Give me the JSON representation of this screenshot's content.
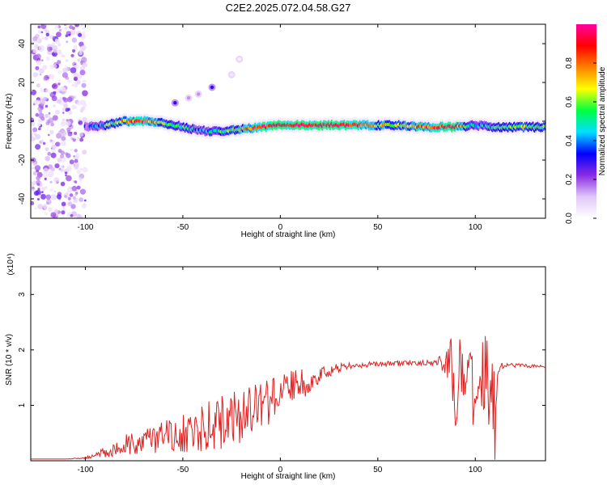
{
  "title": "C2E2.2025.072.04.58.G27",
  "colors": {
    "snr_line": "#e02020",
    "colormap": [
      "#ffffff",
      "#e0c8f8",
      "#8a2be2",
      "#0000ff",
      "#00e0ff",
      "#00ff40",
      "#ffff00",
      "#ff8000",
      "#ff0000",
      "#ff00a0"
    ]
  },
  "chart_data": [
    {
      "type": "heatmap",
      "title": "C2E2.2025.072.04.58.G27",
      "xlabel": "Height of straight line (km)",
      "ylabel": "Frequency (Hz)",
      "xlim": [
        -128,
        136
      ],
      "ylim": [
        -50,
        50
      ],
      "x_ticks": [
        -100,
        -50,
        0,
        50,
        100
      ],
      "y_ticks": [
        -40,
        -20,
        0,
        20,
        40
      ],
      "colorbar": {
        "label": "Normalized spectral amplitude",
        "range": [
          0,
          1
        ],
        "ticks": [
          "0.0",
          "0.2",
          "0.4",
          "0.6",
          "0.8"
        ],
        "tick_values": [
          0.0,
          0.2,
          0.4,
          0.6,
          0.8
        ]
      },
      "ridge": {
        "x": [
          -100,
          -90,
          -80,
          -70,
          -60,
          -50,
          -40,
          -30,
          -20,
          -10,
          0,
          10,
          20,
          30,
          40,
          50,
          60,
          70,
          80,
          90,
          100,
          110,
          120,
          136
        ],
        "freq_hz": [
          -3,
          -2,
          0,
          0,
          -1,
          -3,
          -5,
          -5,
          -4,
          -3,
          -2,
          -2,
          -2,
          -2,
          -2,
          -2,
          -2,
          -3,
          -3,
          -3,
          -2,
          -3,
          -3,
          -3
        ],
        "amplitude": [
          0.25,
          0.5,
          0.75,
          0.9,
          0.6,
          0.5,
          0.4,
          0.5,
          0.7,
          0.9,
          0.95,
          0.9,
          0.95,
          0.95,
          0.85,
          0.7,
          0.6,
          0.8,
          0.85,
          0.9,
          0.4,
          0.5,
          0.6,
          0.6
        ]
      },
      "harmonic_blobs": [
        {
          "x": -54,
          "freq_hz": 9.5,
          "amplitude": 0.3
        },
        {
          "x": -47,
          "freq_hz": 12,
          "amplitude": 0.15
        },
        {
          "x": -42,
          "freq_hz": 14,
          "amplitude": 0.15
        },
        {
          "x": -35,
          "freq_hz": 17.5,
          "amplitude": 0.3
        },
        {
          "x": -25,
          "freq_hz": 24,
          "amplitude": 0.05
        },
        {
          "x": -21,
          "freq_hz": 32,
          "amplitude": 0.03
        }
      ],
      "noise_region_x": [
        -128,
        -100
      ]
    },
    {
      "type": "line",
      "xlabel": "Height of straight line (km)",
      "ylabel": "SNR (10 * v/v)",
      "y_multiplier_label": "(x10⁴)",
      "xlim": [
        -128,
        136
      ],
      "ylim": [
        0,
        3.5
      ],
      "x_ticks": [
        -100,
        -50,
        0,
        50,
        100
      ],
      "y_ticks": [
        1,
        2,
        3
      ],
      "series": [
        {
          "x": [
            -128,
            -110,
            -100,
            -95,
            -90,
            -80,
            -70,
            -60,
            -50,
            -40,
            -30,
            -20,
            -10,
            0,
            10,
            20,
            30,
            40,
            50,
            60,
            70,
            80,
            85,
            88,
            90,
            92,
            95,
            100,
            105,
            108,
            110,
            112,
            115,
            120,
            130,
            136
          ],
          "values": [
            0.03,
            0.03,
            0.05,
            0.1,
            0.15,
            0.3,
            0.35,
            0.45,
            0.5,
            0.6,
            0.7,
            0.8,
            1.0,
            1.2,
            1.35,
            1.55,
            1.68,
            1.72,
            1.75,
            1.76,
            1.77,
            1.77,
            1.78,
            1.8,
            0.8,
            1.8,
            1.7,
            1.2,
            1.75,
            0.9,
            0.7,
            1.7,
            1.72,
            1.72,
            1.71,
            1.7
          ],
          "noise_amplitude": [
            0,
            0,
            0.02,
            0.05,
            0.1,
            0.2,
            0.25,
            0.3,
            0.35,
            0.45,
            0.5,
            0.5,
            0.45,
            0.4,
            0.3,
            0.15,
            0.08,
            0.05,
            0.05,
            0.05,
            0.05,
            0.05,
            0.3,
            0.5,
            0.6,
            0.6,
            0.6,
            0.7,
            0.8,
            0.9,
            1.0,
            0.1,
            0.05,
            0.04,
            0.03,
            0.03
          ]
        }
      ]
    }
  ]
}
